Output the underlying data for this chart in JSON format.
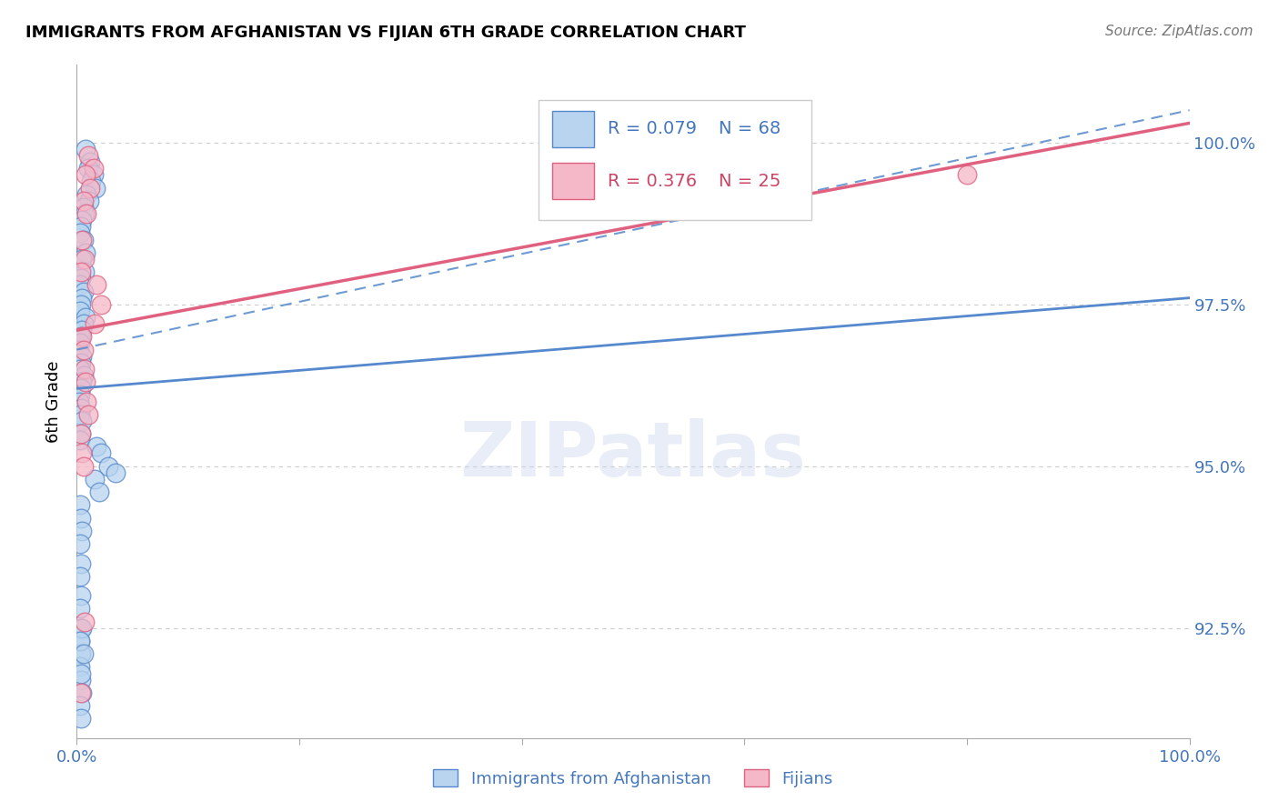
{
  "title": "IMMIGRANTS FROM AFGHANISTAN VS FIJIAN 6TH GRADE CORRELATION CHART",
  "source": "Source: ZipAtlas.com",
  "ylabel": "6th Grade",
  "xlim": [
    0.0,
    100.0
  ],
  "ylim": [
    90.8,
    101.2
  ],
  "ytick_vals": [
    92.5,
    95.0,
    97.5,
    100.0
  ],
  "ytick_labels": [
    "92.5%",
    "95.0%",
    "97.5%",
    "100.0%"
  ],
  "xtick_vals": [
    0,
    20,
    40,
    60,
    80,
    100
  ],
  "xtick_labels": [
    "0.0%",
    "",
    "",
    "",
    "",
    "100.0%"
  ],
  "legend_r_blue": "R = 0.079",
  "legend_n_blue": "N = 68",
  "legend_r_pink": "R = 0.376",
  "legend_n_pink": "N = 25",
  "label_blue": "Immigrants from Afghanistan",
  "label_pink": "Fijians",
  "color_blue_fill": "#b8d4ee",
  "color_pink_fill": "#f5b8c8",
  "color_blue_edge": "#5588cc",
  "color_pink_edge": "#e06080",
  "color_blue_line": "#5588cc",
  "color_pink_line": "#e06080",
  "color_text_blue": "#4477bb",
  "color_text_pink": "#cc4466",
  "watermark": "ZIPatlas",
  "blue_line_y0": 96.2,
  "blue_line_y1": 97.6,
  "blue_dash_y0": 96.8,
  "blue_dash_y1": 100.5,
  "pink_line_y0": 97.1,
  "pink_line_y1": 100.3,
  "blue_scatter_x": [
    0.8,
    1.2,
    1.0,
    1.5,
    1.3,
    1.7,
    0.9,
    1.1,
    0.6,
    0.7,
    0.5,
    0.4,
    0.3,
    0.6,
    0.8,
    0.5,
    0.7,
    0.4,
    0.3,
    0.6,
    0.5,
    0.4,
    0.3,
    0.8,
    0.6,
    0.5,
    0.4,
    0.3,
    0.2,
    0.5,
    0.4,
    0.3,
    0.6,
    0.5,
    0.4,
    0.3,
    0.2,
    0.4,
    0.3,
    0.5,
    0.4,
    0.3,
    1.8,
    2.2,
    2.8,
    3.5,
    1.6,
    2.0,
    0.3,
    0.4,
    0.5,
    0.3,
    0.4,
    0.3,
    0.4,
    0.3,
    0.4,
    0.3,
    0.4,
    0.3,
    0.4,
    0.5,
    0.3,
    0.4,
    0.5,
    0.3,
    0.6,
    0.4
  ],
  "blue_scatter_y": [
    99.9,
    99.7,
    99.6,
    99.5,
    99.4,
    99.3,
    99.2,
    99.1,
    99.0,
    98.9,
    98.8,
    98.7,
    98.6,
    98.5,
    98.3,
    98.2,
    98.0,
    97.9,
    97.8,
    97.7,
    97.6,
    97.5,
    97.4,
    97.3,
    97.2,
    97.1,
    97.0,
    96.9,
    96.8,
    96.7,
    96.6,
    96.5,
    96.4,
    96.3,
    96.2,
    96.1,
    96.0,
    95.9,
    95.8,
    95.7,
    95.5,
    95.4,
    95.3,
    95.2,
    95.0,
    94.9,
    94.8,
    94.6,
    94.4,
    94.2,
    94.0,
    93.8,
    93.5,
    93.3,
    93.0,
    92.8,
    92.5,
    92.3,
    92.1,
    91.9,
    91.7,
    91.5,
    91.3,
    91.1,
    92.5,
    92.3,
    92.1,
    91.8
  ],
  "pink_scatter_x": [
    1.0,
    1.5,
    0.8,
    1.2,
    0.6,
    0.9,
    0.5,
    0.7,
    0.4,
    1.8,
    2.2,
    1.6,
    0.5,
    0.6,
    0.7,
    0.8,
    0.9,
    1.0,
    0.4,
    0.5,
    0.6,
    50.0,
    80.0,
    0.7,
    0.4
  ],
  "pink_scatter_y": [
    99.8,
    99.6,
    99.5,
    99.3,
    99.1,
    98.9,
    98.5,
    98.2,
    98.0,
    97.8,
    97.5,
    97.2,
    97.0,
    96.8,
    96.5,
    96.3,
    96.0,
    95.8,
    95.5,
    95.2,
    95.0,
    99.6,
    99.5,
    92.6,
    91.5
  ]
}
